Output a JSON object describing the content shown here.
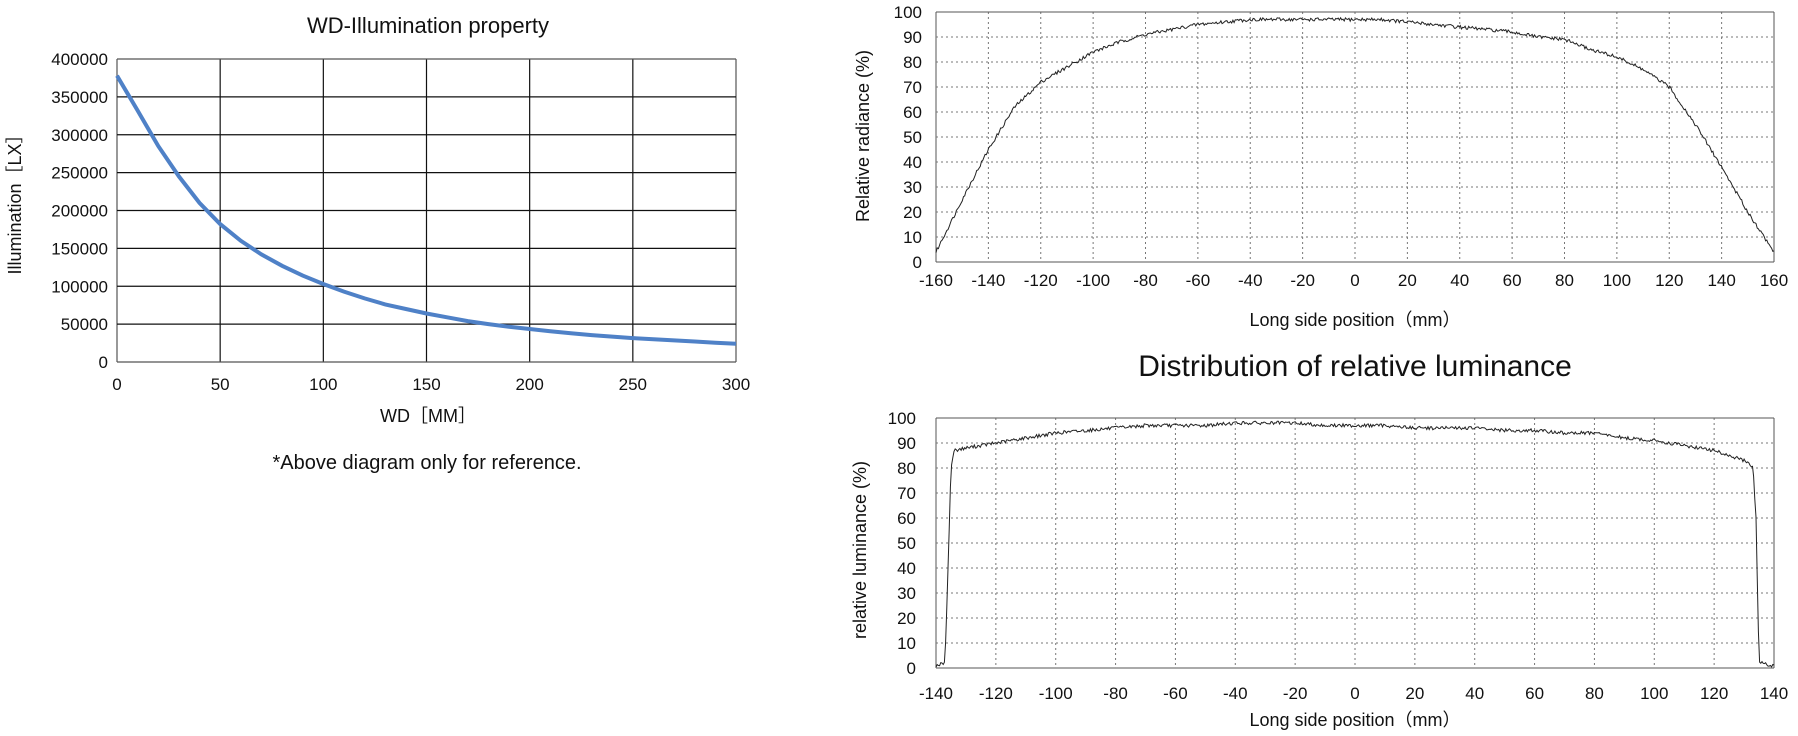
{
  "chart_data": [
    {
      "type": "line",
      "title": "WD-Illumination property",
      "xlabel": "WD［MM］",
      "ylabel": "Illumination［LX］",
      "xlim": [
        0,
        300
      ],
      "ylim": [
        0,
        400000
      ],
      "xticks": [
        "0",
        "50",
        "100",
        "150",
        "200",
        "250",
        "300"
      ],
      "yticks": [
        "0",
        "50000",
        "100000",
        "150000",
        "200000",
        "250000",
        "300000",
        "350000",
        "400000"
      ],
      "grid": true,
      "line_color": "#4f81c7",
      "note": "*Above diagram only for reference.",
      "series": [
        {
          "x": [
            0,
            10,
            20,
            30,
            40,
            50,
            60,
            70,
            80,
            90,
            100,
            110,
            120,
            130,
            140,
            150,
            160,
            170,
            180,
            190,
            200,
            210,
            220,
            230,
            240,
            250,
            260,
            270,
            280,
            290,
            300
          ],
          "values": [
            378000,
            332000,
            285000,
            245000,
            210000,
            182000,
            160000,
            142000,
            127000,
            114000,
            103000,
            93000,
            84000,
            76000,
            70000,
            64000,
            59000,
            54000,
            50000,
            46500,
            43500,
            40500,
            38000,
            35500,
            33500,
            31500,
            30000,
            28500,
            27000,
            25500,
            24000
          ]
        }
      ]
    },
    {
      "type": "line",
      "title": "",
      "xlabel": "Long side position（mm）",
      "ylabel": "Relative radiance (%)",
      "xlim": [
        -160,
        160
      ],
      "ylim": [
        0,
        100
      ],
      "xticks": [
        "-160",
        "-140",
        "-120",
        "-100",
        "-80",
        "-60",
        "-40",
        "-20",
        "0",
        "20",
        "40",
        "60",
        "80",
        "100",
        "120",
        "140",
        "160"
      ],
      "yticks": [
        "0",
        "10",
        "20",
        "30",
        "40",
        "50",
        "60",
        "70",
        "80",
        "90",
        "100"
      ],
      "grid": true,
      "line_color": "#222222",
      "series": [
        {
          "x": [
            -160,
            -150,
            -140,
            -130,
            -120,
            -110,
            -100,
            -90,
            -80,
            -70,
            -60,
            -50,
            -40,
            -30,
            -20,
            -10,
            0,
            10,
            20,
            30,
            40,
            50,
            60,
            70,
            80,
            90,
            100,
            110,
            120,
            130,
            140,
            150,
            160
          ],
          "values": [
            4,
            25,
            45,
            62,
            72,
            78,
            84,
            88,
            91,
            93,
            95,
            96,
            97,
            97,
            97,
            97,
            97,
            97,
            96,
            95,
            94,
            93,
            92,
            90,
            89,
            85,
            82,
            77,
            70,
            55,
            38,
            20,
            4
          ]
        }
      ]
    },
    {
      "type": "line",
      "title": "Distribution of relative luminance",
      "xlabel": "Long side position（mm）",
      "ylabel": "relative luminance (%)",
      "xlim": [
        -140,
        140
      ],
      "ylim": [
        0,
        100
      ],
      "xticks": [
        "-140",
        "-120",
        "-100",
        "-80",
        "-60",
        "-40",
        "-20",
        "0",
        "20",
        "40",
        "60",
        "80",
        "100",
        "120",
        "140"
      ],
      "yticks": [
        "0",
        "10",
        "20",
        "30",
        "40",
        "50",
        "60",
        "70",
        "80",
        "90",
        "100"
      ],
      "grid": true,
      "line_color": "#222222",
      "series": [
        {
          "x": [
            -140,
            -137,
            -136,
            -135,
            -134,
            -130,
            -120,
            -110,
            -100,
            -90,
            -80,
            -70,
            -60,
            -50,
            -40,
            -30,
            -20,
            -10,
            0,
            10,
            20,
            30,
            40,
            50,
            60,
            70,
            80,
            90,
            100,
            110,
            120,
            125,
            130,
            133,
            134,
            135,
            138,
            140
          ],
          "values": [
            1,
            2,
            40,
            80,
            87,
            88,
            90,
            92,
            94,
            95,
            96,
            97,
            97,
            97,
            98,
            98,
            98,
            97,
            97,
            97,
            96,
            96,
            96,
            95,
            95,
            94,
            94,
            92,
            91,
            89,
            87,
            85,
            83,
            80,
            60,
            3,
            1,
            1
          ]
        }
      ]
    }
  ]
}
